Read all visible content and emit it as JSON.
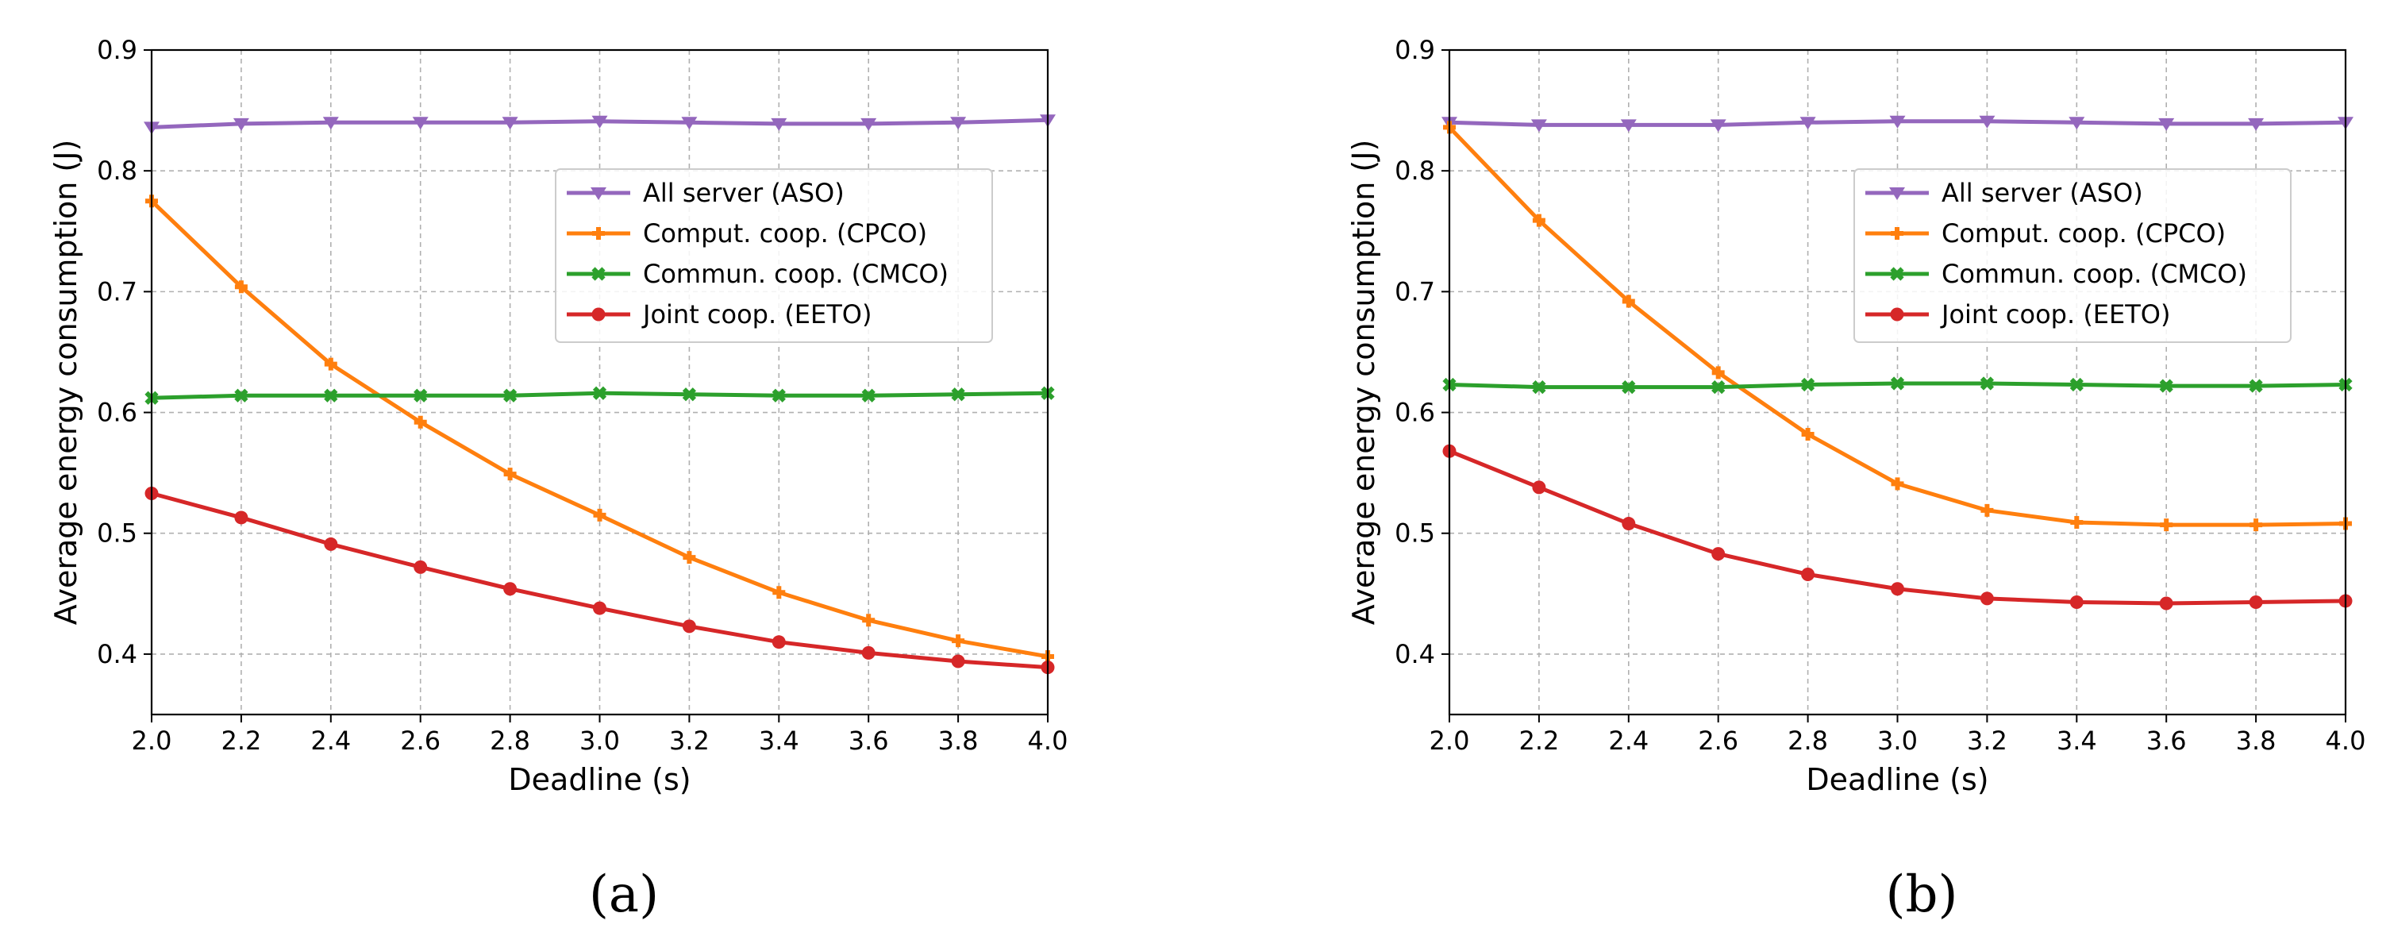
{
  "chart_data": [
    {
      "type": "line",
      "caption": "(a)",
      "xlabel": "Deadline (s)",
      "ylabel": "Average energy consumption (J)",
      "x": [
        2.0,
        2.2,
        2.4,
        2.6,
        2.8,
        3.0,
        3.2,
        3.4,
        3.6,
        3.8,
        4.0
      ],
      "xlim": [
        2.0,
        4.0
      ],
      "ylim": [
        0.35,
        0.9
      ],
      "xticks": [
        "2.0",
        "2.2",
        "2.4",
        "2.6",
        "2.8",
        "3.0",
        "3.2",
        "3.4",
        "3.6",
        "3.8",
        "4.0"
      ],
      "yticks": [
        "0.4",
        "0.5",
        "0.6",
        "0.7",
        "0.8",
        "0.9"
      ],
      "ytick_values": [
        0.4,
        0.5,
        0.6,
        0.7,
        0.8,
        0.9
      ],
      "grid": true,
      "legend_position": "center-right",
      "series": [
        {
          "name": "All server (ASO)",
          "color": "#9467bd",
          "marker": "triangle-down",
          "values": [
            0.836,
            0.839,
            0.84,
            0.84,
            0.84,
            0.841,
            0.84,
            0.839,
            0.839,
            0.84,
            0.842
          ]
        },
        {
          "name": "Comput. coop. (CPCO)",
          "color": "#ff7f0e",
          "marker": "plus",
          "values": [
            0.775,
            0.704,
            0.64,
            0.592,
            0.549,
            0.515,
            0.48,
            0.451,
            0.428,
            0.411,
            0.398
          ]
        },
        {
          "name": "Commun. coop. (CMCO)",
          "color": "#2ca02c",
          "marker": "x",
          "values": [
            0.612,
            0.614,
            0.614,
            0.614,
            0.614,
            0.616,
            0.615,
            0.614,
            0.614,
            0.615,
            0.616
          ]
        },
        {
          "name": "Joint coop. (EETO)",
          "color": "#d62728",
          "marker": "circle",
          "values": [
            0.533,
            0.513,
            0.491,
            0.472,
            0.454,
            0.438,
            0.423,
            0.41,
            0.401,
            0.394,
            0.389
          ]
        }
      ]
    },
    {
      "type": "line",
      "caption": "(b)",
      "xlabel": "Deadline (s)",
      "ylabel": "Average energy consumption (J)",
      "x": [
        2.0,
        2.2,
        2.4,
        2.6,
        2.8,
        3.0,
        3.2,
        3.4,
        3.6,
        3.8,
        4.0
      ],
      "xlim": [
        2.0,
        4.0
      ],
      "ylim": [
        0.35,
        0.9
      ],
      "xticks": [
        "2.0",
        "2.2",
        "2.4",
        "2.6",
        "2.8",
        "3.0",
        "3.2",
        "3.4",
        "3.6",
        "3.8",
        "4.0"
      ],
      "yticks": [
        "0.4",
        "0.5",
        "0.6",
        "0.7",
        "0.8",
        "0.9"
      ],
      "ytick_values": [
        0.4,
        0.5,
        0.6,
        0.7,
        0.8,
        0.9
      ],
      "grid": true,
      "legend_position": "center-right",
      "series": [
        {
          "name": "All server (ASO)",
          "color": "#9467bd",
          "marker": "triangle-down",
          "values": [
            0.84,
            0.838,
            0.838,
            0.838,
            0.84,
            0.841,
            0.841,
            0.84,
            0.839,
            0.839,
            0.84
          ]
        },
        {
          "name": "Comput. coop. (CPCO)",
          "color": "#ff7f0e",
          "marker": "plus",
          "values": [
            0.836,
            0.759,
            0.692,
            0.633,
            0.582,
            0.541,
            0.519,
            0.509,
            0.507,
            0.507,
            0.508
          ]
        },
        {
          "name": "Commun. coop. (CMCO)",
          "color": "#2ca02c",
          "marker": "x",
          "values": [
            0.623,
            0.621,
            0.621,
            0.621,
            0.623,
            0.624,
            0.624,
            0.623,
            0.622,
            0.622,
            0.623
          ]
        },
        {
          "name": "Joint coop. (EETO)",
          "color": "#d62728",
          "marker": "circle",
          "values": [
            0.568,
            0.538,
            0.508,
            0.483,
            0.466,
            0.454,
            0.446,
            0.443,
            0.442,
            0.443,
            0.444
          ]
        }
      ]
    }
  ]
}
